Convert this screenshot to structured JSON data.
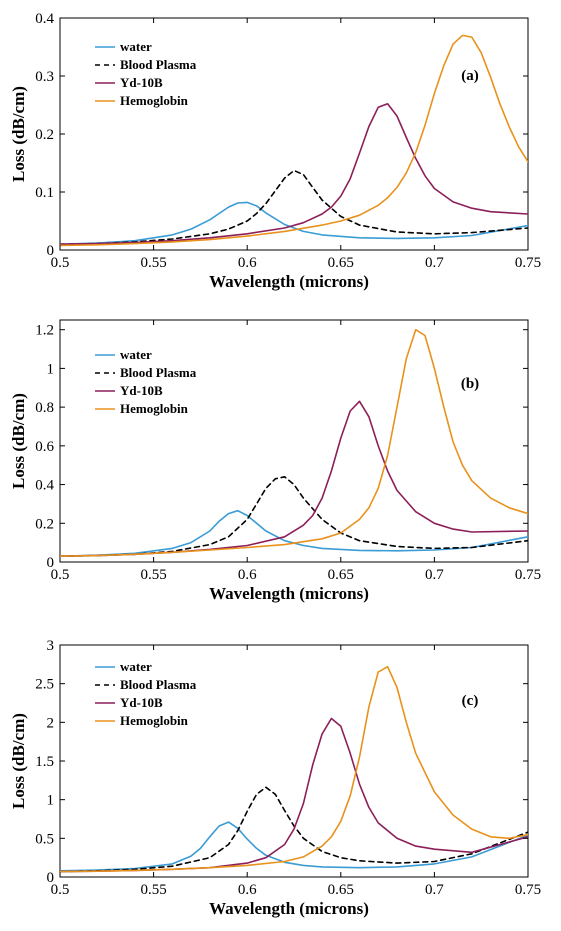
{
  "chart_data": [
    {
      "type": "line",
      "annotation": "(a)",
      "xlabel": "Wavelength (microns)",
      "ylabel": "Loss (dB/cm)",
      "xlim": [
        0.5,
        0.75
      ],
      "ylim": [
        0,
        0.4
      ],
      "xticks": [
        0.5,
        0.55,
        0.6,
        0.65,
        0.7,
        0.75
      ],
      "xtick_labels": [
        "0.5",
        "0.55",
        "0.6",
        "0.65",
        "0.7",
        "0.75"
      ],
      "yticks": [
        0,
        0.1,
        0.2,
        0.3,
        0.4
      ],
      "ytick_labels": [
        "0",
        "0.1",
        "0.2",
        "0.3",
        "0.4"
      ],
      "legend_position": "top-left",
      "grid": false,
      "series": [
        {
          "name": "water",
          "color": "#3a9bd5",
          "dash": "solid",
          "x": [
            0.5,
            0.52,
            0.54,
            0.56,
            0.57,
            0.58,
            0.585,
            0.59,
            0.595,
            0.6,
            0.605,
            0.61,
            0.62,
            0.63,
            0.64,
            0.66,
            0.68,
            0.7,
            0.72,
            0.75
          ],
          "y": [
            0.01,
            0.012,
            0.016,
            0.026,
            0.036,
            0.052,
            0.063,
            0.074,
            0.081,
            0.082,
            0.076,
            0.064,
            0.044,
            0.032,
            0.026,
            0.021,
            0.02,
            0.021,
            0.025,
            0.042
          ]
        },
        {
          "name": "Blood Plasma",
          "color": "#000000",
          "dash": "dashed",
          "x": [
            0.5,
            0.52,
            0.54,
            0.56,
            0.58,
            0.59,
            0.6,
            0.605,
            0.61,
            0.615,
            0.62,
            0.625,
            0.63,
            0.635,
            0.64,
            0.65,
            0.66,
            0.68,
            0.7,
            0.72,
            0.75
          ],
          "y": [
            0.01,
            0.011,
            0.014,
            0.019,
            0.028,
            0.036,
            0.05,
            0.063,
            0.08,
            0.102,
            0.124,
            0.137,
            0.13,
            0.108,
            0.086,
            0.058,
            0.043,
            0.031,
            0.028,
            0.03,
            0.038
          ]
        },
        {
          "name": "Yd-10B",
          "color": "#8c1f5a",
          "dash": "solid",
          "x": [
            0.5,
            0.52,
            0.54,
            0.56,
            0.58,
            0.6,
            0.62,
            0.63,
            0.64,
            0.645,
            0.65,
            0.655,
            0.66,
            0.665,
            0.67,
            0.675,
            0.68,
            0.685,
            0.69,
            0.695,
            0.7,
            0.71,
            0.72,
            0.73,
            0.75
          ],
          "y": [
            0.01,
            0.011,
            0.013,
            0.016,
            0.021,
            0.028,
            0.038,
            0.047,
            0.062,
            0.074,
            0.093,
            0.123,
            0.167,
            0.213,
            0.246,
            0.252,
            0.231,
            0.194,
            0.158,
            0.128,
            0.106,
            0.083,
            0.072,
            0.066,
            0.062
          ]
        },
        {
          "name": "Hemoglobin",
          "color": "#e8921c",
          "dash": "solid",
          "x": [
            0.5,
            0.52,
            0.54,
            0.56,
            0.58,
            0.6,
            0.62,
            0.64,
            0.65,
            0.66,
            0.67,
            0.675,
            0.68,
            0.685,
            0.69,
            0.695,
            0.7,
            0.705,
            0.71,
            0.715,
            0.72,
            0.725,
            0.73,
            0.735,
            0.74,
            0.745,
            0.75
          ],
          "y": [
            0.008,
            0.009,
            0.011,
            0.014,
            0.018,
            0.024,
            0.032,
            0.043,
            0.05,
            0.06,
            0.077,
            0.09,
            0.108,
            0.133,
            0.168,
            0.215,
            0.27,
            0.318,
            0.355,
            0.37,
            0.367,
            0.34,
            0.298,
            0.252,
            0.212,
            0.178,
            0.152
          ]
        }
      ]
    },
    {
      "type": "line",
      "annotation": "(b)",
      "xlabel": "Wavelength (microns)",
      "ylabel": "Loss (dB/cm)",
      "xlim": [
        0.5,
        0.75
      ],
      "ylim": [
        0,
        1.25
      ],
      "xticks": [
        0.5,
        0.55,
        0.6,
        0.65,
        0.7,
        0.75
      ],
      "xtick_labels": [
        "0.5",
        "0.55",
        "0.6",
        "0.65",
        "0.7",
        "0.75"
      ],
      "yticks": [
        0,
        0.2,
        0.4,
        0.6,
        0.8,
        1,
        1.2
      ],
      "ytick_labels": [
        "0",
        "0.2",
        "0.4",
        "0.6",
        "0.8",
        "1",
        "1.2"
      ],
      "legend_position": "top-left",
      "grid": false,
      "series": [
        {
          "name": "water",
          "color": "#3a9bd5",
          "dash": "solid",
          "x": [
            0.5,
            0.52,
            0.54,
            0.56,
            0.57,
            0.58,
            0.585,
            0.59,
            0.595,
            0.6,
            0.605,
            0.61,
            0.62,
            0.63,
            0.64,
            0.66,
            0.68,
            0.7,
            0.72,
            0.75
          ],
          "y": [
            0.03,
            0.035,
            0.045,
            0.07,
            0.1,
            0.16,
            0.21,
            0.25,
            0.265,
            0.24,
            0.2,
            0.16,
            0.11,
            0.085,
            0.07,
            0.06,
            0.058,
            0.062,
            0.075,
            0.13
          ]
        },
        {
          "name": "Blood Plasma",
          "color": "#000000",
          "dash": "dashed",
          "x": [
            0.5,
            0.52,
            0.54,
            0.56,
            0.58,
            0.59,
            0.6,
            0.605,
            0.61,
            0.615,
            0.62,
            0.625,
            0.63,
            0.64,
            0.65,
            0.66,
            0.68,
            0.7,
            0.72,
            0.75
          ],
          "y": [
            0.03,
            0.033,
            0.04,
            0.055,
            0.09,
            0.13,
            0.22,
            0.3,
            0.38,
            0.43,
            0.44,
            0.4,
            0.33,
            0.22,
            0.15,
            0.11,
            0.08,
            0.07,
            0.075,
            0.11
          ]
        },
        {
          "name": "Yd-10B",
          "color": "#8c1f5a",
          "dash": "solid",
          "x": [
            0.5,
            0.52,
            0.54,
            0.56,
            0.58,
            0.6,
            0.62,
            0.63,
            0.635,
            0.64,
            0.645,
            0.65,
            0.655,
            0.66,
            0.665,
            0.67,
            0.675,
            0.68,
            0.69,
            0.7,
            0.71,
            0.72,
            0.75
          ],
          "y": [
            0.03,
            0.033,
            0.04,
            0.05,
            0.065,
            0.085,
            0.13,
            0.19,
            0.24,
            0.33,
            0.47,
            0.64,
            0.78,
            0.83,
            0.75,
            0.6,
            0.47,
            0.37,
            0.26,
            0.2,
            0.17,
            0.155,
            0.16
          ]
        },
        {
          "name": "Hemoglobin",
          "color": "#e8921c",
          "dash": "solid",
          "x": [
            0.5,
            0.52,
            0.54,
            0.56,
            0.58,
            0.6,
            0.62,
            0.64,
            0.65,
            0.66,
            0.665,
            0.67,
            0.675,
            0.68,
            0.685,
            0.69,
            0.695,
            0.7,
            0.705,
            0.71,
            0.715,
            0.72,
            0.73,
            0.74,
            0.75
          ],
          "y": [
            0.03,
            0.033,
            0.04,
            0.05,
            0.062,
            0.075,
            0.09,
            0.12,
            0.15,
            0.22,
            0.28,
            0.38,
            0.55,
            0.8,
            1.05,
            1.2,
            1.17,
            1.0,
            0.8,
            0.62,
            0.5,
            0.42,
            0.33,
            0.28,
            0.25
          ]
        }
      ]
    },
    {
      "type": "line",
      "annotation": "(c)",
      "xlabel": "Wavelength (microns)",
      "ylabel": "Loss (dB/cm)",
      "xlim": [
        0.5,
        0.75
      ],
      "ylim": [
        0,
        3
      ],
      "xticks": [
        0.5,
        0.55,
        0.6,
        0.65,
        0.7,
        0.75
      ],
      "xtick_labels": [
        "0.5",
        "0.55",
        "0.6",
        "0.65",
        "0.7",
        "0.75"
      ],
      "yticks": [
        0,
        0.5,
        1,
        1.5,
        2,
        2.5,
        3
      ],
      "ytick_labels": [
        "0",
        "0.5",
        "1",
        "1.5",
        "2",
        "2.5",
        "3"
      ],
      "legend_position": "top-left",
      "grid": false,
      "series": [
        {
          "name": "water",
          "color": "#3a9bd5",
          "dash": "solid",
          "x": [
            0.5,
            0.52,
            0.54,
            0.56,
            0.57,
            0.575,
            0.58,
            0.585,
            0.59,
            0.595,
            0.6,
            0.605,
            0.61,
            0.62,
            0.63,
            0.64,
            0.66,
            0.68,
            0.7,
            0.72,
            0.75
          ],
          "y": [
            0.08,
            0.09,
            0.11,
            0.17,
            0.27,
            0.37,
            0.52,
            0.66,
            0.71,
            0.63,
            0.49,
            0.37,
            0.28,
            0.19,
            0.15,
            0.13,
            0.12,
            0.13,
            0.17,
            0.26,
            0.54
          ]
        },
        {
          "name": "Blood Plasma",
          "color": "#000000",
          "dash": "dashed",
          "x": [
            0.5,
            0.52,
            0.54,
            0.56,
            0.58,
            0.59,
            0.595,
            0.6,
            0.605,
            0.61,
            0.615,
            0.62,
            0.625,
            0.63,
            0.64,
            0.65,
            0.66,
            0.68,
            0.7,
            0.72,
            0.75
          ],
          "y": [
            0.07,
            0.08,
            0.1,
            0.14,
            0.25,
            0.42,
            0.6,
            0.85,
            1.07,
            1.16,
            1.07,
            0.86,
            0.66,
            0.5,
            0.33,
            0.25,
            0.21,
            0.18,
            0.2,
            0.3,
            0.58
          ]
        },
        {
          "name": "Yd-10B",
          "color": "#8c1f5a",
          "dash": "solid",
          "x": [
            0.5,
            0.52,
            0.54,
            0.56,
            0.58,
            0.6,
            0.61,
            0.62,
            0.625,
            0.63,
            0.635,
            0.64,
            0.645,
            0.65,
            0.655,
            0.66,
            0.665,
            0.67,
            0.68,
            0.69,
            0.7,
            0.72,
            0.75
          ],
          "y": [
            0.07,
            0.075,
            0.085,
            0.1,
            0.12,
            0.18,
            0.25,
            0.42,
            0.62,
            0.95,
            1.45,
            1.85,
            2.05,
            1.95,
            1.6,
            1.2,
            0.9,
            0.7,
            0.5,
            0.4,
            0.36,
            0.32,
            0.52
          ]
        },
        {
          "name": "Hemoglobin",
          "color": "#e8921c",
          "dash": "solid",
          "x": [
            0.5,
            0.52,
            0.54,
            0.56,
            0.58,
            0.6,
            0.62,
            0.63,
            0.64,
            0.645,
            0.65,
            0.655,
            0.66,
            0.665,
            0.67,
            0.675,
            0.68,
            0.685,
            0.69,
            0.7,
            0.71,
            0.72,
            0.73,
            0.74,
            0.75
          ],
          "y": [
            0.07,
            0.075,
            0.085,
            0.1,
            0.12,
            0.15,
            0.2,
            0.26,
            0.4,
            0.52,
            0.72,
            1.05,
            1.55,
            2.2,
            2.65,
            2.72,
            2.45,
            2.0,
            1.6,
            1.1,
            0.8,
            0.62,
            0.52,
            0.5,
            0.55
          ]
        }
      ]
    }
  ]
}
